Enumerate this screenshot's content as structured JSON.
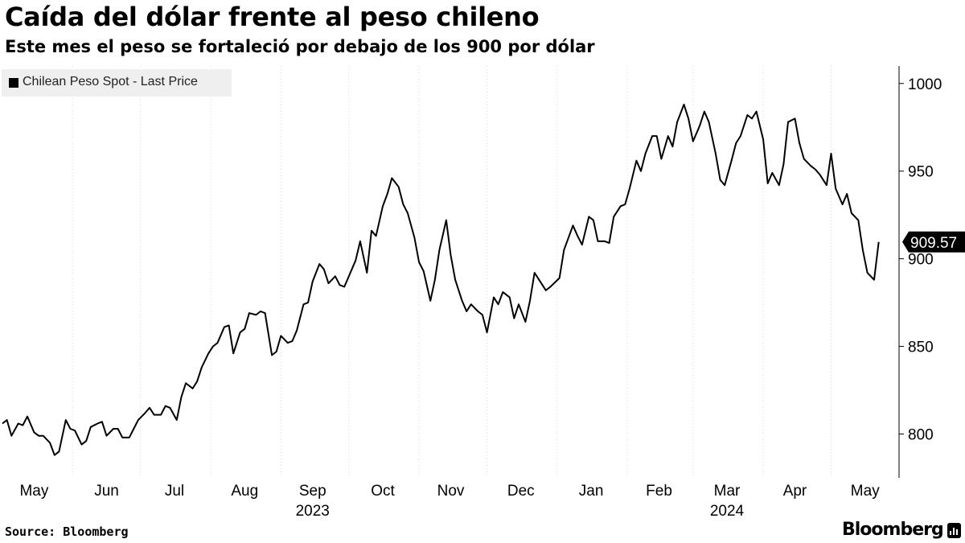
{
  "header": {
    "title": "Caída del dólar frente al peso chileno",
    "subtitle": "Este mes el peso se fortaleció por debajo de los 900 por dólar"
  },
  "legend": {
    "label": "Chilean Peso Spot - Last Price"
  },
  "footer": {
    "source": "Source: Bloomberg",
    "brand": "Bloomberg"
  },
  "colors": {
    "line": "#000000",
    "grid": "#d3d3d3",
    "legend_bg": "#efefef",
    "last_label_bg": "#000000",
    "last_label_text": "#ffffff"
  },
  "chart_data": {
    "type": "line",
    "title": "Caída del dólar frente al peso chileno",
    "subtitle": "Este mes el peso se fortaleció por debajo de los 900 por dólar",
    "series": [
      {
        "name": "Chilean Peso Spot - Last Price",
        "last_value": 909.57,
        "last_value_label": "909.57",
        "points": [
          [
            "2023-05-01",
            806
          ],
          [
            "2023-05-03",
            808
          ],
          [
            "2023-05-05",
            799
          ],
          [
            "2023-05-08",
            806
          ],
          [
            "2023-05-10",
            805
          ],
          [
            "2023-05-12",
            810
          ],
          [
            "2023-05-15",
            801
          ],
          [
            "2023-05-17",
            799
          ],
          [
            "2023-05-19",
            799
          ],
          [
            "2023-05-22",
            795
          ],
          [
            "2023-05-24",
            788
          ],
          [
            "2023-05-26",
            790
          ],
          [
            "2023-05-29",
            808
          ],
          [
            "2023-05-31",
            803
          ],
          [
            "2023-06-02",
            802
          ],
          [
            "2023-06-05",
            794
          ],
          [
            "2023-06-07",
            796
          ],
          [
            "2023-06-09",
            804
          ],
          [
            "2023-06-12",
            806
          ],
          [
            "2023-06-14",
            807
          ],
          [
            "2023-06-16",
            799
          ],
          [
            "2023-06-19",
            803
          ],
          [
            "2023-06-21",
            803
          ],
          [
            "2023-06-23",
            798
          ],
          [
            "2023-06-26",
            798
          ],
          [
            "2023-06-28",
            803
          ],
          [
            "2023-06-30",
            808
          ],
          [
            "2023-07-03",
            812
          ],
          [
            "2023-07-05",
            815
          ],
          [
            "2023-07-07",
            811
          ],
          [
            "2023-07-10",
            811
          ],
          [
            "2023-07-12",
            816
          ],
          [
            "2023-07-14",
            815
          ],
          [
            "2023-07-17",
            808
          ],
          [
            "2023-07-19",
            821
          ],
          [
            "2023-07-21",
            829
          ],
          [
            "2023-07-24",
            826
          ],
          [
            "2023-07-26",
            830
          ],
          [
            "2023-07-28",
            838
          ],
          [
            "2023-07-31",
            846
          ],
          [
            "2023-08-02",
            850
          ],
          [
            "2023-08-04",
            852
          ],
          [
            "2023-08-07",
            861
          ],
          [
            "2023-08-09",
            862
          ],
          [
            "2023-08-11",
            846
          ],
          [
            "2023-08-14",
            858
          ],
          [
            "2023-08-16",
            860
          ],
          [
            "2023-08-18",
            869
          ],
          [
            "2023-08-21",
            868
          ],
          [
            "2023-08-23",
            870
          ],
          [
            "2023-08-25",
            869
          ],
          [
            "2023-08-28",
            845
          ],
          [
            "2023-08-30",
            847
          ],
          [
            "2023-09-01",
            856
          ],
          [
            "2023-09-04",
            852
          ],
          [
            "2023-09-06",
            853
          ],
          [
            "2023-09-08",
            859
          ],
          [
            "2023-09-11",
            874
          ],
          [
            "2023-09-13",
            875
          ],
          [
            "2023-09-15",
            887
          ],
          [
            "2023-09-18",
            897
          ],
          [
            "2023-09-20",
            894
          ],
          [
            "2023-09-22",
            886
          ],
          [
            "2023-09-25",
            890
          ],
          [
            "2023-09-27",
            885
          ],
          [
            "2023-09-29",
            884
          ],
          [
            "2023-10-02",
            893
          ],
          [
            "2023-10-04",
            899
          ],
          [
            "2023-10-06",
            910
          ],
          [
            "2023-10-09",
            892
          ],
          [
            "2023-10-11",
            916
          ],
          [
            "2023-10-13",
            913
          ],
          [
            "2023-10-16",
            930
          ],
          [
            "2023-10-18",
            937
          ],
          [
            "2023-10-20",
            946
          ],
          [
            "2023-10-23",
            941
          ],
          [
            "2023-10-25",
            931
          ],
          [
            "2023-10-27",
            926
          ],
          [
            "2023-10-30",
            912
          ],
          [
            "2023-11-01",
            898
          ],
          [
            "2023-11-03",
            893
          ],
          [
            "2023-11-06",
            876
          ],
          [
            "2023-11-08",
            888
          ],
          [
            "2023-11-10",
            905
          ],
          [
            "2023-11-13",
            922
          ],
          [
            "2023-11-15",
            902
          ],
          [
            "2023-11-17",
            888
          ],
          [
            "2023-11-20",
            876
          ],
          [
            "2023-11-22",
            870
          ],
          [
            "2023-11-24",
            874
          ],
          [
            "2023-11-27",
            870
          ],
          [
            "2023-11-29",
            868
          ],
          [
            "2023-12-01",
            858
          ],
          [
            "2023-12-04",
            878
          ],
          [
            "2023-12-06",
            874
          ],
          [
            "2023-12-08",
            881
          ],
          [
            "2023-12-11",
            878
          ],
          [
            "2023-12-13",
            866
          ],
          [
            "2023-12-15",
            874
          ],
          [
            "2023-12-18",
            864
          ],
          [
            "2023-12-20",
            876
          ],
          [
            "2023-12-22",
            892
          ],
          [
            "2023-12-27",
            882
          ],
          [
            "2023-12-29",
            884
          ],
          [
            "2024-01-02",
            889
          ],
          [
            "2024-01-04",
            905
          ],
          [
            "2024-01-08",
            919
          ],
          [
            "2024-01-10",
            913
          ],
          [
            "2024-01-12",
            908
          ],
          [
            "2024-01-15",
            924
          ],
          [
            "2024-01-17",
            922
          ],
          [
            "2024-01-19",
            910
          ],
          [
            "2024-01-22",
            910
          ],
          [
            "2024-01-24",
            909
          ],
          [
            "2024-01-26",
            924
          ],
          [
            "2024-01-29",
            930
          ],
          [
            "2024-01-31",
            931
          ],
          [
            "2024-02-02",
            940
          ],
          [
            "2024-02-05",
            956
          ],
          [
            "2024-02-07",
            950
          ],
          [
            "2024-02-09",
            960
          ],
          [
            "2024-02-12",
            970
          ],
          [
            "2024-02-14",
            970
          ],
          [
            "2024-02-16",
            957
          ],
          [
            "2024-02-19",
            970
          ],
          [
            "2024-02-21",
            964
          ],
          [
            "2024-02-23",
            978
          ],
          [
            "2024-02-26",
            988
          ],
          [
            "2024-02-28",
            980
          ],
          [
            "2024-03-01",
            967
          ],
          [
            "2024-03-04",
            976
          ],
          [
            "2024-03-06",
            984
          ],
          [
            "2024-03-08",
            978
          ],
          [
            "2024-03-11",
            960
          ],
          [
            "2024-03-13",
            945
          ],
          [
            "2024-03-15",
            942
          ],
          [
            "2024-03-18",
            956
          ],
          [
            "2024-03-20",
            966
          ],
          [
            "2024-03-22",
            970
          ],
          [
            "2024-03-25",
            982
          ],
          [
            "2024-03-27",
            980
          ],
          [
            "2024-03-29",
            984
          ],
          [
            "2024-04-01",
            968
          ],
          [
            "2024-04-03",
            943
          ],
          [
            "2024-04-05",
            949
          ],
          [
            "2024-04-08",
            942
          ],
          [
            "2024-04-10",
            954
          ],
          [
            "2024-04-12",
            978
          ],
          [
            "2024-04-15",
            980
          ],
          [
            "2024-04-17",
            966
          ],
          [
            "2024-04-19",
            957
          ],
          [
            "2024-04-22",
            953
          ],
          [
            "2024-04-24",
            951
          ],
          [
            "2024-04-26",
            948
          ],
          [
            "2024-04-29",
            942
          ],
          [
            "2024-05-01",
            960
          ],
          [
            "2024-05-03",
            940
          ],
          [
            "2024-05-06",
            931
          ],
          [
            "2024-05-08",
            937
          ],
          [
            "2024-05-10",
            926
          ],
          [
            "2024-05-13",
            922
          ],
          [
            "2024-05-15",
            905
          ],
          [
            "2024-05-17",
            892
          ],
          [
            "2024-05-20",
            888
          ],
          [
            "2024-05-22",
            909.57
          ]
        ]
      }
    ],
    "y_axis": {
      "ticks": [
        800,
        850,
        900,
        950,
        1000
      ],
      "ylim": [
        775,
        1010
      ],
      "position": "right"
    },
    "x_axis": {
      "xlim": [
        "2023-05-01",
        "2024-05-31"
      ],
      "month_labels": [
        {
          "date": "2023-05-15",
          "label": "May"
        },
        {
          "date": "2023-06-16",
          "label": "Jun"
        },
        {
          "date": "2023-07-16",
          "label": "Jul"
        },
        {
          "date": "2023-08-16",
          "label": "Aug"
        },
        {
          "date": "2023-09-15",
          "label": "Sep"
        },
        {
          "date": "2023-10-16",
          "label": "Oct"
        },
        {
          "date": "2023-11-15",
          "label": "Nov"
        },
        {
          "date": "2023-12-16",
          "label": "Dec"
        },
        {
          "date": "2024-01-16",
          "label": "Jan"
        },
        {
          "date": "2024-02-15",
          "label": "Feb"
        },
        {
          "date": "2024-03-16",
          "label": "Mar"
        },
        {
          "date": "2024-04-15",
          "label": "Apr"
        },
        {
          "date": "2024-05-16",
          "label": "May"
        }
      ],
      "year_labels": [
        {
          "date": "2023-09-15",
          "label": "2023"
        },
        {
          "date": "2024-03-16",
          "label": "2024"
        }
      ],
      "gridlines": [
        "2023-06-01",
        "2023-07-01",
        "2023-08-01",
        "2023-09-01",
        "2023-10-01",
        "2023-11-01",
        "2023-12-01",
        "2024-01-01",
        "2024-02-01",
        "2024-03-01",
        "2024-04-01",
        "2024-05-01"
      ]
    },
    "grid": "vertical",
    "legend_position": "top-left"
  }
}
